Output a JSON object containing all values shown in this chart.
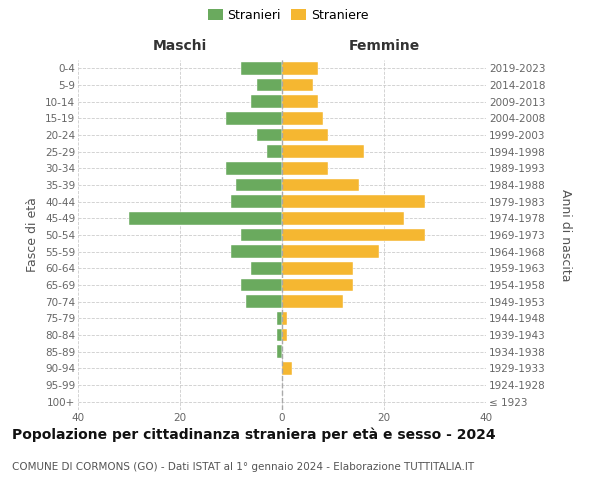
{
  "age_groups": [
    "100+",
    "95-99",
    "90-94",
    "85-89",
    "80-84",
    "75-79",
    "70-74",
    "65-69",
    "60-64",
    "55-59",
    "50-54",
    "45-49",
    "40-44",
    "35-39",
    "30-34",
    "25-29",
    "20-24",
    "15-19",
    "10-14",
    "5-9",
    "0-4"
  ],
  "birth_years": [
    "≤ 1923",
    "1924-1928",
    "1929-1933",
    "1934-1938",
    "1939-1943",
    "1944-1948",
    "1949-1953",
    "1954-1958",
    "1959-1963",
    "1964-1968",
    "1969-1973",
    "1974-1978",
    "1979-1983",
    "1984-1988",
    "1989-1993",
    "1994-1998",
    "1999-2003",
    "2004-2008",
    "2009-2013",
    "2014-2018",
    "2019-2023"
  ],
  "maschi": [
    0,
    0,
    0,
    1,
    1,
    1,
    7,
    8,
    6,
    10,
    8,
    30,
    10,
    9,
    11,
    3,
    5,
    11,
    6,
    5,
    8
  ],
  "femmine": [
    0,
    0,
    2,
    0,
    1,
    1,
    12,
    14,
    14,
    19,
    28,
    24,
    28,
    15,
    9,
    16,
    9,
    8,
    7,
    6,
    7
  ],
  "maschi_color": "#6aaa5e",
  "femmine_color": "#f5b731",
  "background_color": "#ffffff",
  "grid_color": "#cccccc",
  "title": "Popolazione per cittadinanza straniera per età e sesso - 2024",
  "subtitle": "COMUNE DI CORMONS (GO) - Dati ISTAT al 1° gennaio 2024 - Elaborazione TUTTITALIA.IT",
  "xlabel_left": "Maschi",
  "xlabel_right": "Femmine",
  "ylabel_left": "Fasce di età",
  "ylabel_right": "Anni di nascita",
  "legend_stranieri": "Stranieri",
  "legend_straniere": "Straniere",
  "xlim": 40,
  "tick_fontsize": 7.5,
  "label_fontsize": 9,
  "title_fontsize": 10,
  "subtitle_fontsize": 7.5
}
